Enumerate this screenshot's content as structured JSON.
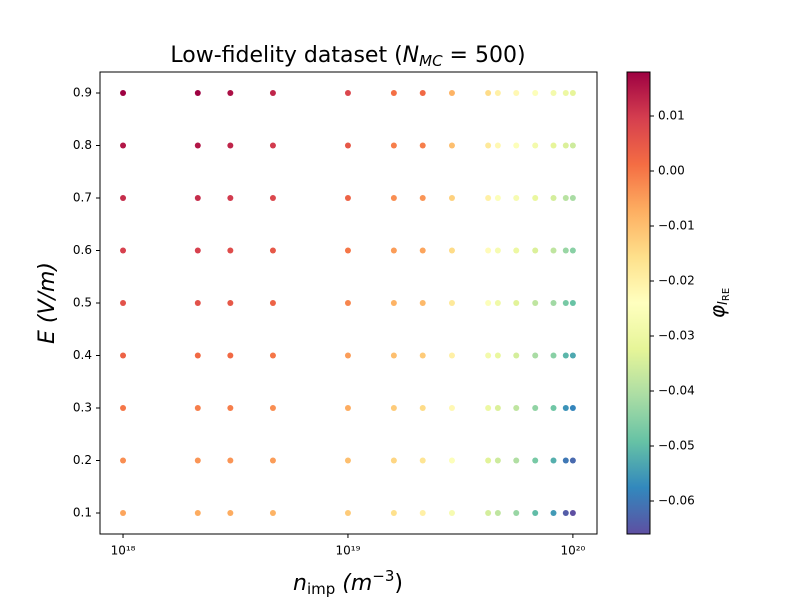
{
  "chart_data": {
    "type": "scatter",
    "title": {
      "text": "Low-fidelity dataset (",
      "symbol": "N",
      "subscript": "MC",
      "rest": " = 500)"
    },
    "x_label": {
      "symbol": "n",
      "subscript": "imp",
      "text": " (m",
      "superscript": "−3",
      "rest": ")"
    },
    "y_label": "E (V/m)",
    "colorbar_label": {
      "symbol": "φ",
      "subscript": "I",
      "subsubscript": "RE"
    },
    "x": [
      1e+18,
      2.15e+18,
      3e+18,
      4.64e+18,
      1e+19,
      1.6e+19,
      2.15e+19,
      2.9e+19,
      4.2e+19,
      4.64e+19,
      5.6e+19,
      6.8e+19,
      8.2e+19,
      9.3e+19,
      1e+20
    ],
    "y": [
      0.1,
      0.2,
      0.3,
      0.4,
      0.5,
      0.6,
      0.7,
      0.8,
      0.9
    ],
    "values": [
      [
        -0.006,
        -0.003,
        0.0,
        0.003,
        0.006,
        0.009,
        0.012,
        0.015,
        0.018
      ],
      [
        -0.007,
        -0.004,
        -0.001,
        0.002,
        0.006,
        0.009,
        0.012,
        0.015,
        0.018
      ],
      [
        -0.007,
        -0.004,
        -0.001,
        0.002,
        0.005,
        0.007,
        0.01,
        0.013,
        0.016
      ],
      [
        -0.008,
        -0.005,
        -0.003,
        0.0,
        0.003,
        0.005,
        0.008,
        0.01,
        0.013
      ],
      [
        -0.012,
        -0.01,
        -0.007,
        -0.005,
        -0.002,
        0.0,
        0.003,
        0.005,
        0.008
      ],
      [
        -0.016,
        -0.014,
        -0.012,
        -0.01,
        -0.008,
        -0.005,
        -0.003,
        -0.001,
        0.001
      ],
      [
        -0.02,
        -0.017,
        -0.015,
        -0.012,
        -0.009,
        -0.006,
        -0.004,
        -0.001,
        0.002
      ],
      [
        -0.027,
        -0.025,
        -0.022,
        -0.02,
        -0.018,
        -0.015,
        -0.013,
        -0.01,
        -0.008
      ],
      [
        -0.035,
        -0.033,
        -0.03,
        -0.028,
        -0.025,
        -0.023,
        -0.02,
        -0.018,
        -0.015
      ],
      [
        -0.038,
        -0.036,
        -0.034,
        -0.031,
        -0.029,
        -0.027,
        -0.025,
        -0.022,
        -0.02
      ],
      [
        -0.043,
        -0.04,
        -0.038,
        -0.035,
        -0.033,
        -0.03,
        -0.027,
        -0.025,
        -0.022
      ],
      [
        -0.05,
        -0.047,
        -0.044,
        -0.041,
        -0.038,
        -0.034,
        -0.031,
        -0.028,
        -0.025
      ],
      [
        -0.055,
        -0.052,
        -0.048,
        -0.045,
        -0.042,
        -0.038,
        -0.035,
        -0.032,
        -0.028
      ],
      [
        -0.064,
        -0.06,
        -0.056,
        -0.051,
        -0.047,
        -0.043,
        -0.039,
        -0.034,
        -0.03
      ],
      [
        -0.066,
        -0.062,
        -0.058,
        -0.053,
        -0.049,
        -0.045,
        -0.041,
        -0.036,
        -0.032
      ]
    ],
    "x_log": true,
    "xlim": [
      7.9e+17,
      1.28e+20
    ],
    "xticks": [
      {
        "value": 1e+18,
        "label": "10¹⁸"
      },
      {
        "value": 1e+19,
        "label": "10¹⁹"
      },
      {
        "value": 1e+20,
        "label": "10²⁰"
      }
    ],
    "ylim": [
      0.06,
      0.94
    ],
    "yticks": [
      0.1,
      0.2,
      0.3,
      0.4,
      0.5,
      0.6,
      0.7,
      0.8,
      0.9
    ],
    "colormap": "Spectral_r",
    "clim": [
      -0.066,
      0.018
    ],
    "cticks": [
      {
        "value": 0.01,
        "label": "0.01"
      },
      {
        "value": 0.0,
        "label": "0.00"
      },
      {
        "value": -0.01,
        "label": "−0.01"
      },
      {
        "value": -0.02,
        "label": "−0.02"
      },
      {
        "value": -0.03,
        "label": "−0.03"
      },
      {
        "value": -0.04,
        "label": "−0.04"
      },
      {
        "value": -0.05,
        "label": "−0.05"
      },
      {
        "value": -0.06,
        "label": "−0.06"
      }
    ]
  }
}
